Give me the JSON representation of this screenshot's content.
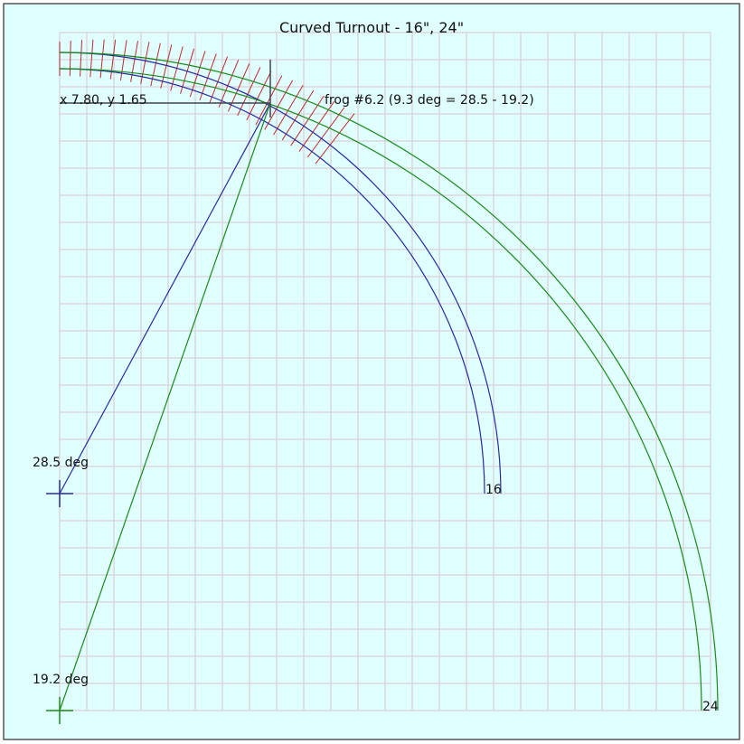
{
  "header": {
    "title": "Curved Turnout - 16\", 24\""
  },
  "labels": {
    "position": "x 7.80, y 1.65",
    "frog": "frog #6.2 (9.3 deg = 28.5 - 19.2)",
    "angle_a": "28.5 deg",
    "angle_b": "19.2 deg",
    "radius_a": "16",
    "radius_b": "24"
  }
}
